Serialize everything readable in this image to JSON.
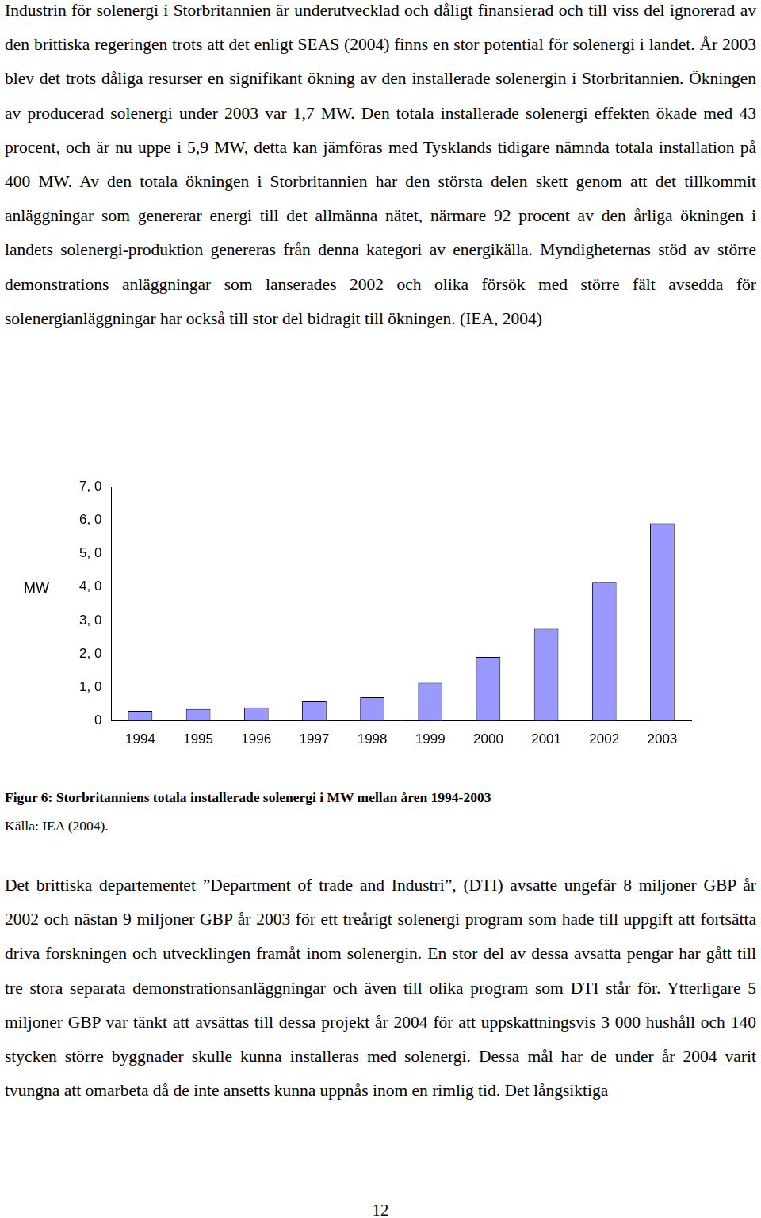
{
  "text_before": [
    "Industrin för solenergi i Storbritannien är underutvecklad och dåligt finansierad och till viss del ignorerad av den brittiska regeringen trots att det enligt SEAS (2004) finns en stor potential för solenergi i landet. År 2003 blev det trots dåliga resurser en signifikant ökning av den installerade solenergin i Storbritannien. Ökningen av producerad solenergi under 2003 var 1,7 MW. Den totala installerade solenergi effekten ökade med 43 procent, och är nu uppe i 5,9 MW, detta kan jämföras med Tysklands tidigare nämnda totala installation på 400 MW. Av den totala ökningen i Storbritannien har den största delen skett genom att det tillkommit anläggningar som genererar energi till det allmänna nätet, närmare 92 procent av den årliga ökningen i landets solenergi-produktion genereras från denna kategori av energikälla. Myndigheternas stöd av större demonstrations anläggningar som lanserades 2002 och olika försök med större fält avsedda för solenergianläggningar har också till stor del bidragit till ökningen. (IEA, 2004)"
  ],
  "chart_data": {
    "type": "bar",
    "categories": [
      "1994",
      "1995",
      "1996",
      "1997",
      "1998",
      "1999",
      "2000",
      "2001",
      "2002",
      "2003"
    ],
    "values": [
      0.3,
      0.35,
      0.4,
      0.58,
      0.7,
      1.14,
      1.91,
      2.75,
      4.13,
      5.9
    ],
    "color": "#9999ff",
    "y_label": "MW",
    "ylim": [
      0,
      7
    ],
    "yticks": [
      0,
      {
        "value": 1,
        "label": "1, 0"
      },
      {
        "value": 2,
        "label": "2, 0"
      },
      {
        "value": 3,
        "label": "3, 0"
      },
      {
        "value": 4,
        "label": "4, 0"
      },
      {
        "value": 5,
        "label": "5, 0"
      },
      {
        "value": 6,
        "label": "6, 0"
      },
      {
        "value": 7,
        "label": "7, 0"
      }
    ],
    "grid": false
  },
  "caption": "Figur 6: Storbritanniens totala installerade solenergi i MW mellan åren 1994-2003",
  "source": "Källa: IEA (2004).",
  "text_after": [
    "Det brittiska departementet ”Department of trade and Industri”, (DTI) avsatte ungefär 8 miljoner GBP år 2002 och nästan 9 miljoner GBP år 2003 för ett treårigt solenergi program som hade till uppgift att fortsätta driva forskningen och utvecklingen framåt inom solenergin. En stor del av dessa avsatta pengar har gått till tre stora separata demonstrationsanläggningar och även till olika program som DTI står för. Ytterligare 5 miljoner GBP var tänkt att avsättas till dessa projekt år 2004 för att uppskattningsvis 3 000 hushåll och 140 stycken större byggnader skulle kunna installeras med solenergi. Dessa mål har de under år 2004 varit tvungna att omarbeta då de inte ansetts kunna uppnås inom en rimlig tid. Det långsiktiga"
  ],
  "page_number": "12"
}
